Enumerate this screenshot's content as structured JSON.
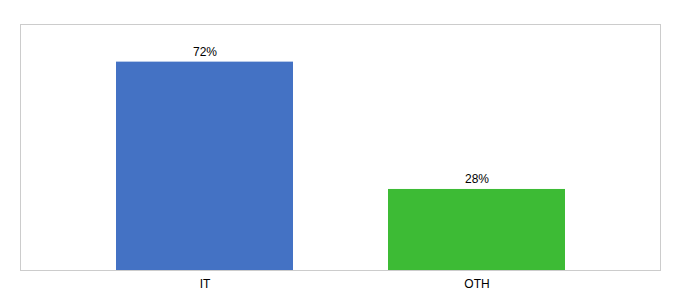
{
  "chart_data": {
    "type": "bar",
    "categories": [
      "IT",
      "OTH"
    ],
    "values": [
      72,
      28
    ],
    "value_labels": [
      "72%",
      "28%"
    ],
    "colors": [
      "#4472c4",
      "#3dbb35"
    ],
    "ylim": [
      0,
      85
    ],
    "data_labels": true,
    "tick_labels": "x",
    "grid": false
  }
}
